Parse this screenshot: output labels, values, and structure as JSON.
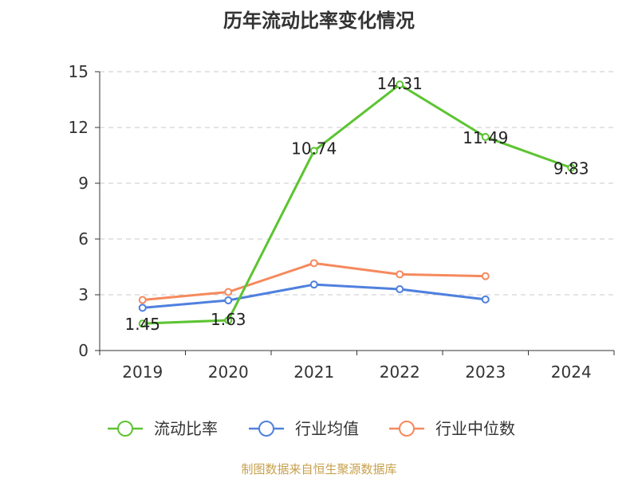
{
  "title": "历年流动比率变化情况",
  "source": "制图数据来自恒生聚源数据库",
  "chart_data": {
    "type": "line",
    "title": "历年流动比率变化情况",
    "categories": [
      "2019",
      "2020",
      "2021",
      "2022",
      "2023",
      "2024"
    ],
    "ylim": [
      0,
      15
    ],
    "yticks": [
      0,
      3,
      6,
      9,
      12,
      15
    ],
    "grid": true,
    "legend_position": "bottom",
    "series": [
      {
        "name": "流动比率",
        "color": "#5cc431",
        "values": [
          1.45,
          1.63,
          10.74,
          14.31,
          11.49,
          9.83
        ],
        "labels": [
          "1.45",
          "1.63",
          "10.74",
          "14.31",
          "11.49",
          "9.83"
        ]
      },
      {
        "name": "行业均值",
        "color": "#4f80de",
        "values": [
          2.3,
          2.7,
          3.55,
          3.3,
          2.75,
          null
        ]
      },
      {
        "name": "行业中位数",
        "color": "#f5895d",
        "values": [
          2.72,
          3.15,
          4.7,
          4.1,
          4.0,
          null
        ]
      }
    ]
  }
}
